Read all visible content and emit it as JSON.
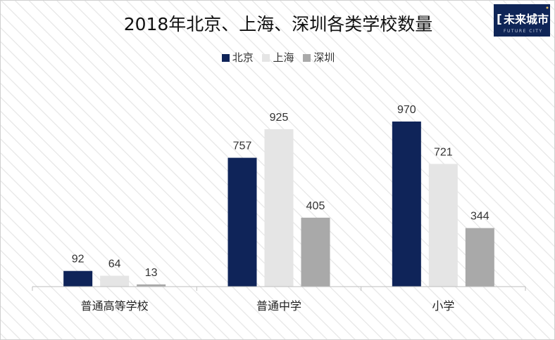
{
  "logo": {
    "text": "未来城市",
    "subtext": "FUTURE CITY",
    "bg": "#0f2557"
  },
  "chart_data": {
    "type": "bar",
    "title": "2018年北京、上海、深圳各类学校数量",
    "categories": [
      "普通高等学校",
      "普通中学",
      "小学"
    ],
    "series": [
      {
        "name": "北京",
        "values": [
          92,
          757,
          970
        ],
        "color": "#0f2459"
      },
      {
        "name": "上海",
        "values": [
          64,
          925,
          721
        ],
        "color": "#e5e5e5"
      },
      {
        "name": "深圳",
        "values": [
          13,
          405,
          344
        ],
        "color": "#a9a9a9"
      }
    ],
    "ylim": [
      0,
      1000
    ],
    "legend_position": "top-center",
    "grid": false,
    "data_labels": true
  }
}
